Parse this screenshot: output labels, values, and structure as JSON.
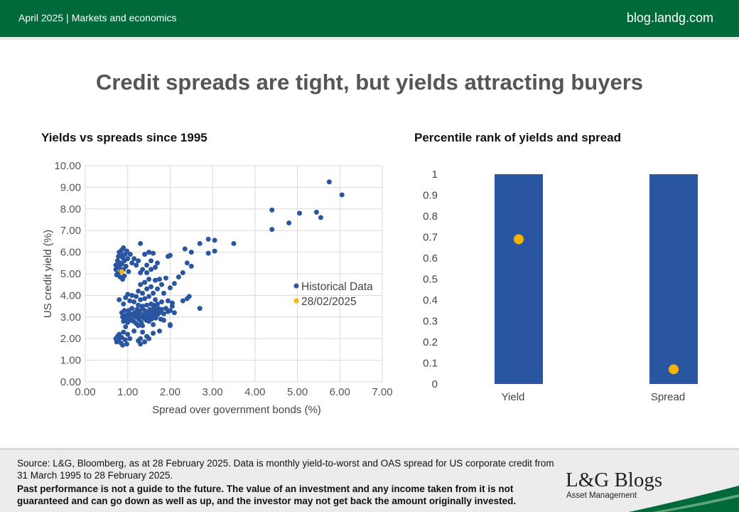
{
  "header": {
    "date": "April 2025",
    "section": "Markets and economics",
    "site": "blog.landg.com"
  },
  "headline": "Credit spreads are tight, but yields attracting buyers",
  "chart_data": [
    {
      "type": "scatter",
      "title": "Yields vs spreads since 1995",
      "xlabel": "Spread over government bonds (%)",
      "ylabel": "US credit yield (%)",
      "xlim": [
        0,
        7
      ],
      "ylim": [
        0,
        10
      ],
      "xticks": [
        "0.00",
        "1.00",
        "2.00",
        "3.00",
        "4.00",
        "5.00",
        "6.00",
        "7.00"
      ],
      "yticks": [
        "0.00",
        "1.00",
        "2.00",
        "3.00",
        "4.00",
        "5.00",
        "6.00",
        "7.00",
        "8.00",
        "9.00",
        "10.00"
      ],
      "grid": true,
      "legend": "right",
      "series": [
        {
          "name": "Historical Data",
          "color": "#2a55a0",
          "points": [
            [
              0.72,
              5.2
            ],
            [
              0.72,
              5.4
            ],
            [
              0.74,
              4.95
            ],
            [
              0.76,
              5.6
            ],
            [
              0.76,
              5.0
            ],
            [
              0.78,
              5.8
            ],
            [
              0.8,
              6.0
            ],
            [
              0.8,
              5.3
            ],
            [
              0.82,
              5.5
            ],
            [
              0.82,
              4.85
            ],
            [
              0.84,
              5.9
            ],
            [
              0.84,
              5.1
            ],
            [
              0.86,
              6.1
            ],
            [
              0.86,
              5.45
            ],
            [
              0.88,
              5.75
            ],
            [
              0.88,
              4.75
            ],
            [
              0.9,
              6.2
            ],
            [
              0.9,
              5.2
            ],
            [
              0.92,
              5.6
            ],
            [
              0.92,
              4.9
            ],
            [
              0.94,
              5.9
            ],
            [
              0.96,
              5.35
            ],
            [
              0.98,
              6.05
            ],
            [
              1.0,
              5.7
            ],
            [
              1.02,
              5.1
            ],
            [
              1.06,
              5.9
            ],
            [
              1.1,
              5.5
            ],
            [
              1.15,
              5.7
            ],
            [
              1.2,
              5.4
            ],
            [
              1.25,
              5.6
            ],
            [
              1.3,
              6.4
            ],
            [
              1.35,
              5.2
            ],
            [
              1.4,
              5.9
            ],
            [
              1.45,
              5.4
            ],
            [
              1.5,
              6.0
            ],
            [
              1.55,
              5.6
            ],
            [
              1.6,
              5.95
            ],
            [
              1.65,
              5.3
            ],
            [
              1.7,
              5.5
            ],
            [
              1.3,
              5.05
            ],
            [
              1.45,
              5.05
            ],
            [
              1.55,
              5.2
            ],
            [
              0.72,
              2.0
            ],
            [
              0.74,
              1.85
            ],
            [
              0.76,
              2.1
            ],
            [
              0.78,
              1.95
            ],
            [
              0.8,
              2.2
            ],
            [
              0.84,
              1.8
            ],
            [
              0.86,
              2.05
            ],
            [
              0.88,
              1.7
            ],
            [
              0.9,
              2.3
            ],
            [
              0.94,
              1.95
            ],
            [
              0.98,
              1.75
            ],
            [
              1.0,
              2.2
            ],
            [
              1.05,
              2.0
            ],
            [
              1.25,
              1.9
            ],
            [
              1.3,
              2.0
            ],
            [
              1.35,
              2.3
            ],
            [
              1.4,
              1.85
            ],
            [
              1.45,
              2.1
            ],
            [
              1.5,
              2.0
            ],
            [
              1.6,
              2.25
            ],
            [
              1.75,
              2.35
            ],
            [
              1.3,
              1.75
            ],
            [
              0.8,
              3.8
            ],
            [
              0.86,
              3.2
            ],
            [
              0.88,
              3.0
            ],
            [
              0.9,
              2.8
            ],
            [
              0.92,
              3.3
            ],
            [
              0.94,
              3.05
            ],
            [
              0.96,
              2.9
            ],
            [
              0.98,
              3.1
            ],
            [
              1.0,
              2.75
            ],
            [
              1.02,
              3.3
            ],
            [
              1.04,
              2.95
            ],
            [
              1.06,
              3.15
            ],
            [
              1.08,
              2.85
            ],
            [
              1.1,
              3.4
            ],
            [
              1.12,
              3.05
            ],
            [
              1.14,
              2.8
            ],
            [
              1.16,
              3.2
            ],
            [
              1.18,
              3.0
            ],
            [
              1.2,
              2.7
            ],
            [
              1.22,
              3.35
            ],
            [
              1.24,
              3.1
            ],
            [
              1.26,
              2.9
            ],
            [
              1.28,
              3.25
            ],
            [
              1.3,
              3.0
            ],
            [
              1.32,
              2.75
            ],
            [
              1.34,
              3.4
            ],
            [
              1.36,
              3.1
            ],
            [
              1.38,
              2.95
            ],
            [
              1.4,
              3.3
            ],
            [
              1.42,
              3.05
            ],
            [
              1.44,
              2.85
            ],
            [
              1.46,
              3.2
            ],
            [
              1.48,
              3.0
            ],
            [
              1.5,
              2.8
            ],
            [
              1.52,
              3.35
            ],
            [
              1.54,
              3.1
            ],
            [
              1.56,
              2.9
            ],
            [
              1.58,
              3.25
            ],
            [
              1.6,
              3.05
            ],
            [
              1.62,
              3.45
            ],
            [
              1.64,
              3.15
            ],
            [
              1.66,
              2.95
            ],
            [
              1.68,
              3.3
            ],
            [
              1.7,
              3.1
            ],
            [
              1.72,
              3.4
            ],
            [
              1.75,
              3.2
            ],
            [
              1.78,
              2.9
            ],
            [
              1.8,
              3.35
            ],
            [
              1.85,
              3.15
            ],
            [
              1.9,
              3.4
            ],
            [
              1.95,
              3.25
            ],
            [
              2.0,
              3.3
            ],
            [
              2.05,
              3.5
            ],
            [
              2.1,
              3.2
            ],
            [
              2.0,
              2.65
            ],
            [
              1.6,
              2.65
            ],
            [
              1.85,
              2.85
            ],
            [
              1.15,
              2.35
            ],
            [
              0.95,
              2.55
            ],
            [
              1.25,
              2.6
            ],
            [
              1.35,
              2.6
            ],
            [
              0.9,
              3.6
            ],
            [
              0.95,
              3.9
            ],
            [
              1.0,
              4.05
            ],
            [
              1.05,
              3.75
            ],
            [
              1.1,
              4.0
            ],
            [
              1.15,
              3.7
            ],
            [
              1.2,
              3.95
            ],
            [
              1.25,
              4.2
            ],
            [
              1.3,
              3.8
            ],
            [
              1.35,
              4.1
            ],
            [
              1.4,
              3.85
            ],
            [
              1.45,
              4.3
            ],
            [
              1.5,
              3.95
            ],
            [
              1.55,
              4.4
            ],
            [
              1.6,
              4.1
            ],
            [
              1.65,
              3.8
            ],
            [
              1.7,
              4.3
            ],
            [
              1.75,
              4.75
            ],
            [
              1.8,
              4.5
            ],
            [
              1.85,
              4.1
            ],
            [
              1.9,
              4.8
            ],
            [
              1.95,
              3.75
            ],
            [
              2.0,
              4.35
            ],
            [
              2.05,
              3.65
            ],
            [
              2.1,
              4.55
            ],
            [
              2.2,
              4.85
            ],
            [
              2.3,
              5.05
            ],
            [
              2.4,
              5.5
            ],
            [
              2.5,
              5.35
            ],
            [
              1.3,
              4.5
            ],
            [
              1.4,
              4.6
            ],
            [
              1.5,
              4.75
            ],
            [
              1.6,
              3.55
            ],
            [
              1.7,
              3.6
            ],
            [
              1.8,
              3.7
            ],
            [
              1.65,
              4.7
            ],
            [
              1.35,
              3.5
            ],
            [
              1.45,
              3.55
            ],
            [
              1.55,
              3.6
            ],
            [
              1.25,
              3.55
            ],
            [
              1.95,
              5.8
            ],
            [
              2.0,
              5.85
            ],
            [
              2.35,
              6.15
            ],
            [
              2.5,
              6.0
            ],
            [
              2.7,
              6.4
            ],
            [
              2.9,
              6.6
            ],
            [
              3.05,
              6.55
            ],
            [
              2.9,
              5.95
            ],
            [
              3.05,
              6.05
            ],
            [
              3.5,
              6.4
            ],
            [
              2.4,
              3.85
            ],
            [
              2.45,
              3.95
            ],
            [
              2.3,
              3.75
            ],
            [
              2.7,
              3.4
            ],
            [
              2.0,
              2.6
            ],
            [
              4.4,
              7.95
            ],
            [
              4.4,
              7.05
            ],
            [
              4.8,
              7.35
            ],
            [
              5.05,
              7.8
            ],
            [
              5.45,
              7.85
            ],
            [
              5.55,
              7.6
            ],
            [
              5.75,
              9.25
            ],
            [
              6.05,
              8.65
            ]
          ]
        },
        {
          "name": "28/02/2025",
          "color": "#f5b400",
          "points": [
            [
              0.86,
              5.1
            ]
          ]
        }
      ]
    },
    {
      "type": "bar",
      "title": "Percentile rank of yields and spread",
      "categories": [
        "Yield",
        "Spread"
      ],
      "values": [
        1,
        1
      ],
      "markers": [
        0.69,
        0.07
      ],
      "bar_color": "#2a55a0",
      "marker_color": "#f5b400",
      "ylim": [
        0,
        1
      ],
      "yticks": [
        "0",
        "0.1",
        "0.2",
        "0.3",
        "0.4",
        "0.5",
        "0.6",
        "0.7",
        "0.8",
        "0.9",
        "1"
      ]
    }
  ],
  "footer": {
    "source": "Source: L&G, Bloomberg, as at 28 February 2025. Data is monthly yield-to-worst and OAS spread for US corporate credit from 31 March 1995 to 28 February 2025.",
    "disclaimer": "Past performance is not a guide to the future. The value of an investment and any income taken from it is not guaranteed and can go down as well as up, and the investor may not get back the amount originally invested.",
    "logo": "L&G Blogs",
    "logo_sub": "Asset Management"
  }
}
